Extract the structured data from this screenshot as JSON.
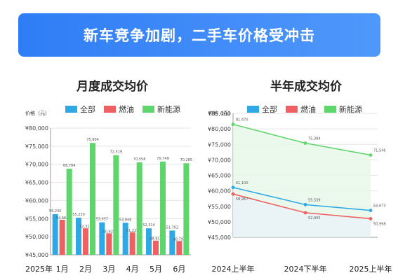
{
  "banner": {
    "title": "新车竞争加剧，二手车价格受冲击"
  },
  "legend": {
    "all": "全部",
    "fuel": "燃油",
    "nev": "新能源"
  },
  "colors": {
    "all": "#2ea9e6",
    "fuel": "#ef6063",
    "nev": "#5fd66b",
    "banner": "#3b87f7"
  },
  "chart_data": [
    {
      "type": "bar",
      "title": "月度成交均价",
      "ylabel": "价格（元）",
      "ylim": [
        45000,
        80000
      ],
      "yticks": [
        "¥45,000",
        "¥50,000",
        "¥55,000",
        "¥60,000",
        "¥65,000",
        "¥70,000",
        "¥75,000",
        "¥80,000"
      ],
      "year_label": "2025年",
      "categories": [
        "1月",
        "2月",
        "3月",
        "4月",
        "5月",
        "6月"
      ],
      "series": [
        {
          "name": "全部",
          "values": [
            56230,
            55230,
            53957,
            53846,
            52314,
            51702
          ],
          "labels": [
            "56,230",
            "55,230",
            "53,957",
            "53,846",
            "52,314",
            "51,702"
          ]
        },
        {
          "name": "燃油",
          "values": [
            54664,
            52311,
            50928,
            51228,
            48918,
            48793
          ],
          "labels": [
            "54,664",
            "52,311",
            "50,928",
            "51,228",
            "48,918",
            "48,793"
          ]
        },
        {
          "name": "新能源",
          "values": [
            68784,
            75904,
            72519,
            70558,
            70749,
            70285
          ],
          "labels": [
            "68,784",
            "75,904",
            "72,519",
            "70,558",
            "70,749",
            "70,285"
          ]
        }
      ]
    },
    {
      "type": "line",
      "title": "半年成交均价",
      "ylabel": "价格（元）",
      "ylim": [
        45000,
        85000
      ],
      "yticks": [
        "¥45,000",
        "¥50,000",
        "¥55,000",
        "¥60,000",
        "¥65,000",
        "¥70,000",
        "¥75,000",
        "¥80,000",
        "¥85,000"
      ],
      "categories": [
        "2024上半年",
        "2024下半年",
        "2025上半年"
      ],
      "series": [
        {
          "name": "全部",
          "values": [
            61100,
            55539,
            53673
          ],
          "labels": [
            "61,100",
            "55,539",
            "53,673"
          ]
        },
        {
          "name": "燃油",
          "values": [
            58967,
            52935,
            50998
          ],
          "labels": [
            "58,967",
            "52,935",
            "50,998"
          ]
        },
        {
          "name": "新能源",
          "values": [
            81470,
            75394,
            71546
          ],
          "labels": [
            "81,470",
            "75,394",
            "71,546"
          ]
        }
      ]
    }
  ]
}
